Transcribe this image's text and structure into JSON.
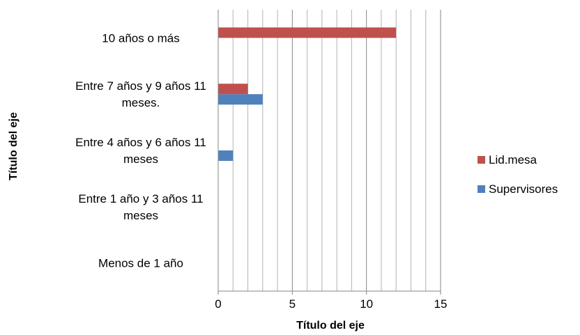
{
  "chart_data": {
    "type": "bar",
    "orientation": "horizontal",
    "categories": [
      "Menos de 1 año",
      "Entre 1 año y 3 años 11 meses",
      "Entre 4 años y 6 años 11 meses",
      "Entre 7 años y 9 años 11 meses.",
      "10 años o más"
    ],
    "category_label_lines": [
      [
        "Menos de 1 año"
      ],
      [
        "Entre 1 año y 3 años 11",
        "meses"
      ],
      [
        "Entre 4 años y 6 años 11",
        "meses"
      ],
      [
        "Entre 7 años y 9 años 11",
        "meses."
      ],
      [
        "10 años o más"
      ]
    ],
    "series": [
      {
        "name": "Supervisores",
        "color": "#4f81bd",
        "values": [
          0,
          0,
          1,
          3,
          0
        ]
      },
      {
        "name": "Lid.mesa",
        "color": "#c0504d",
        "values": [
          0,
          0,
          0,
          2,
          12
        ]
      }
    ],
    "xlabel": "Título del eje",
    "ylabel": "Título del eje",
    "xlim": [
      0,
      15
    ],
    "x_ticks": [
      0,
      5,
      10,
      15
    ],
    "minor_grid_step": 1,
    "grid": true,
    "legend_position": "right",
    "legend_order": [
      "Lid.mesa",
      "Supervisores"
    ]
  }
}
